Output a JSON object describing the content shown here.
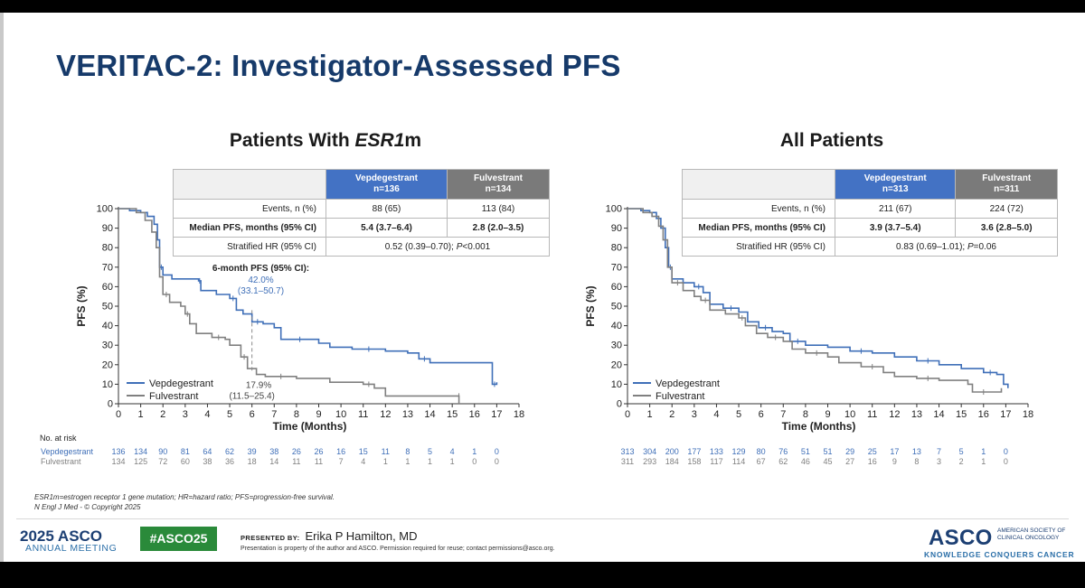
{
  "slide": {
    "title": "VERITAC-2: Investigator-Assessed PFS",
    "footnote_1": "ESR1m=estrogen receptor 1 gene mutation; HR=hazard ratio; PFS=progression-free survival.",
    "footnote_2": "N Engl J Med - © Copyright 2025"
  },
  "footer": {
    "meeting_year": "2025 ASCO",
    "meeting_name": "ANNUAL MEETING",
    "hashtag": "#ASCO25",
    "presented_by_label": "PRESENTED BY:",
    "presenter": "Erika P Hamilton, MD",
    "disclaimer": "Presentation is property of the author and ASCO. Permission required for reuse; contact permissions@asco.org.",
    "logo": "ASCO",
    "logo_sub_1": "AMERICAN SOCIETY OF",
    "logo_sub_2": "CLINICAL ONCOLOGY",
    "tagline": "KNOWLEDGE CONQUERS CANCER"
  },
  "colors": {
    "vep": "#3f6fb8",
    "ful": "#808080",
    "title": "#163a6a"
  },
  "panels": [
    {
      "title_prefix": "Patients With ",
      "title_italic": "ESR1",
      "title_suffix": "m",
      "table": {
        "head_vep": "Vepdegestrant",
        "n_vep": "n=136",
        "head_ful": "Fulvestrant",
        "n_ful": "n=134",
        "events_label": "Events, n (%)",
        "events_vep": "88 (65)",
        "events_ful": "113 (84)",
        "median_label": "Median PFS, months (95% CI)",
        "median_vep": "5.4 (3.7–6.4)",
        "median_ful": "2.8 (2.0–3.5)",
        "hr_label": "Stratified HR (95% CI)",
        "hr_value": "0.52 (0.39–0.70); ",
        "hr_p_label": "P",
        "hr_p_value": "<0.001"
      },
      "annotations": {
        "title": "6-month PFS (95% CI):",
        "vep_value": "42.0%",
        "vep_ci": "(33.1–50.7)",
        "ful_value": "17.9%",
        "ful_ci": "(11.5–25.4)"
      }
    },
    {
      "title": "All Patients",
      "table": {
        "head_vep": "Vepdegestrant",
        "n_vep": "n=313",
        "head_ful": "Fulvestrant",
        "n_ful": "n=311",
        "events_label": "Events, n (%)",
        "events_vep": "211 (67)",
        "events_ful": "224 (72)",
        "median_label": "Median PFS, months (95% CI)",
        "median_vep": "3.9 (3.7–5.4)",
        "median_ful": "3.6 (2.8–5.0)",
        "hr_label": "Stratified HR (95% CI)",
        "hr_value": "0.83 (0.69–1.01); ",
        "hr_p_label": "P",
        "hr_p_value": "=0.06"
      }
    }
  ],
  "chart_data": [
    {
      "type": "line",
      "title": "Patients With ESR1m",
      "xlabel": "Time (Months)",
      "ylabel": "PFS (%)",
      "xlim": [
        0,
        18
      ],
      "ylim": [
        0,
        100
      ],
      "xticks": [
        "0",
        "1",
        "2",
        "3",
        "4",
        "5",
        "6",
        "7",
        "8",
        "9",
        "10",
        "11",
        "12",
        "13",
        "14",
        "15",
        "16",
        "17",
        "18"
      ],
      "yticks": [
        "0",
        "10",
        "20",
        "30",
        "40",
        "50",
        "60",
        "70",
        "80",
        "90",
        "100"
      ],
      "at_risk_label": "No. at risk",
      "series": [
        {
          "name": "Vepdegestrant",
          "color": "#3f6fb8",
          "points": [
            [
              0,
              100
            ],
            [
              0.5,
              99
            ],
            [
              1,
              98
            ],
            [
              1.3,
              96
            ],
            [
              1.6,
              92
            ],
            [
              1.75,
              84
            ],
            [
              1.85,
              70
            ],
            [
              2,
              66
            ],
            [
              2.4,
              64
            ],
            [
              3.6,
              63
            ],
            [
              3.7,
              58
            ],
            [
              4.4,
              56
            ],
            [
              5,
              54
            ],
            [
              5.3,
              48
            ],
            [
              5.6,
              46
            ],
            [
              6,
              42
            ],
            [
              6.5,
              41
            ],
            [
              7,
              39
            ],
            [
              7.3,
              33
            ],
            [
              9,
              31
            ],
            [
              9.5,
              29
            ],
            [
              10.5,
              28
            ],
            [
              12,
              27
            ],
            [
              13,
              26
            ],
            [
              13.5,
              23
            ],
            [
              14,
              21
            ],
            [
              16.7,
              21
            ],
            [
              16.8,
              10
            ],
            [
              17,
              11
            ]
          ],
          "at_risk": [
            "136",
            "134",
            "90",
            "81",
            "64",
            "62",
            "39",
            "38",
            "26",
            "26",
            "16",
            "15",
            "11",
            "8",
            "5",
            "4",
            "1",
            "0"
          ]
        },
        {
          "name": "Fulvestrant",
          "color": "#808080",
          "points": [
            [
              0,
              100
            ],
            [
              0.8,
              98
            ],
            [
              1.2,
              94
            ],
            [
              1.5,
              88
            ],
            [
              1.7,
              80
            ],
            [
              1.85,
              65
            ],
            [
              2,
              56
            ],
            [
              2.3,
              52
            ],
            [
              2.8,
              50
            ],
            [
              3,
              46
            ],
            [
              3.2,
              41
            ],
            [
              3.5,
              36
            ],
            [
              4.2,
              34
            ],
            [
              4.8,
              33
            ],
            [
              5,
              30
            ],
            [
              5.5,
              24
            ],
            [
              5.8,
              18
            ],
            [
              6.2,
              15
            ],
            [
              6.6,
              14
            ],
            [
              8,
              13
            ],
            [
              9.5,
              11
            ],
            [
              11,
              10
            ],
            [
              11.5,
              8
            ],
            [
              12,
              4
            ],
            [
              15.3,
              4
            ],
            [
              15.3,
              0
            ]
          ],
          "at_risk": [
            "134",
            "125",
            "72",
            "60",
            "38",
            "36",
            "18",
            "14",
            "11",
            "11",
            "7",
            "4",
            "1",
            "1",
            "1",
            "1",
            "0",
            "0"
          ]
        }
      ]
    },
    {
      "type": "line",
      "title": "All Patients",
      "xlabel": "Time (Months)",
      "ylabel": "PFS (%)",
      "xlim": [
        0,
        18
      ],
      "ylim": [
        0,
        100
      ],
      "xticks": [
        "0",
        "1",
        "2",
        "3",
        "4",
        "5",
        "6",
        "7",
        "8",
        "9",
        "10",
        "11",
        "12",
        "13",
        "14",
        "15",
        "16",
        "17",
        "18"
      ],
      "yticks": [
        "0",
        "10",
        "20",
        "30",
        "40",
        "50",
        "60",
        "70",
        "80",
        "90",
        "100"
      ],
      "series": [
        {
          "name": "Vepdegestrant",
          "color": "#3f6fb8",
          "points": [
            [
              0,
              100
            ],
            [
              0.6,
              99
            ],
            [
              1,
              98
            ],
            [
              1.3,
              95
            ],
            [
              1.5,
              90
            ],
            [
              1.7,
              80
            ],
            [
              1.85,
              70
            ],
            [
              2,
              64
            ],
            [
              2.5,
              62
            ],
            [
              3,
              60
            ],
            [
              3.4,
              57
            ],
            [
              3.7,
              51
            ],
            [
              4.3,
              49
            ],
            [
              5,
              47
            ],
            [
              5.4,
              42
            ],
            [
              5.9,
              39
            ],
            [
              6.5,
              37
            ],
            [
              7,
              36
            ],
            [
              7.3,
              32
            ],
            [
              8,
              30
            ],
            [
              9,
              29
            ],
            [
              10,
              27
            ],
            [
              11,
              26
            ],
            [
              12,
              24
            ],
            [
              13,
              22
            ],
            [
              14,
              20
            ],
            [
              15,
              18
            ],
            [
              16,
              16
            ],
            [
              16.6,
              15
            ],
            [
              16.9,
              10
            ],
            [
              17.1,
              8
            ]
          ],
          "at_risk": [
            "313",
            "304",
            "200",
            "177",
            "133",
            "129",
            "80",
            "76",
            "51",
            "51",
            "29",
            "25",
            "17",
            "13",
            "7",
            "5",
            "1",
            "0"
          ]
        },
        {
          "name": "Fulvestrant",
          "color": "#808080",
          "points": [
            [
              0,
              100
            ],
            [
              0.7,
              98
            ],
            [
              1.1,
              96
            ],
            [
              1.4,
              91
            ],
            [
              1.6,
              84
            ],
            [
              1.8,
              70
            ],
            [
              2,
              62
            ],
            [
              2.5,
              58
            ],
            [
              3,
              55
            ],
            [
              3.3,
              53
            ],
            [
              3.7,
              48
            ],
            [
              4.4,
              46
            ],
            [
              5,
              44
            ],
            [
              5.3,
              40
            ],
            [
              5.8,
              36
            ],
            [
              6.3,
              34
            ],
            [
              7,
              32
            ],
            [
              7.4,
              28
            ],
            [
              8,
              26
            ],
            [
              9,
              24
            ],
            [
              9.5,
              21
            ],
            [
              10.5,
              19
            ],
            [
              11.5,
              16
            ],
            [
              12,
              14
            ],
            [
              13,
              13
            ],
            [
              14,
              12
            ],
            [
              15.3,
              10
            ],
            [
              15.5,
              6
            ],
            [
              16.5,
              6
            ],
            [
              16.8,
              8
            ]
          ],
          "at_risk": [
            "311",
            "293",
            "184",
            "158",
            "117",
            "114",
            "67",
            "62",
            "46",
            "45",
            "27",
            "16",
            "9",
            "8",
            "3",
            "2",
            "1",
            "0"
          ]
        }
      ]
    }
  ]
}
